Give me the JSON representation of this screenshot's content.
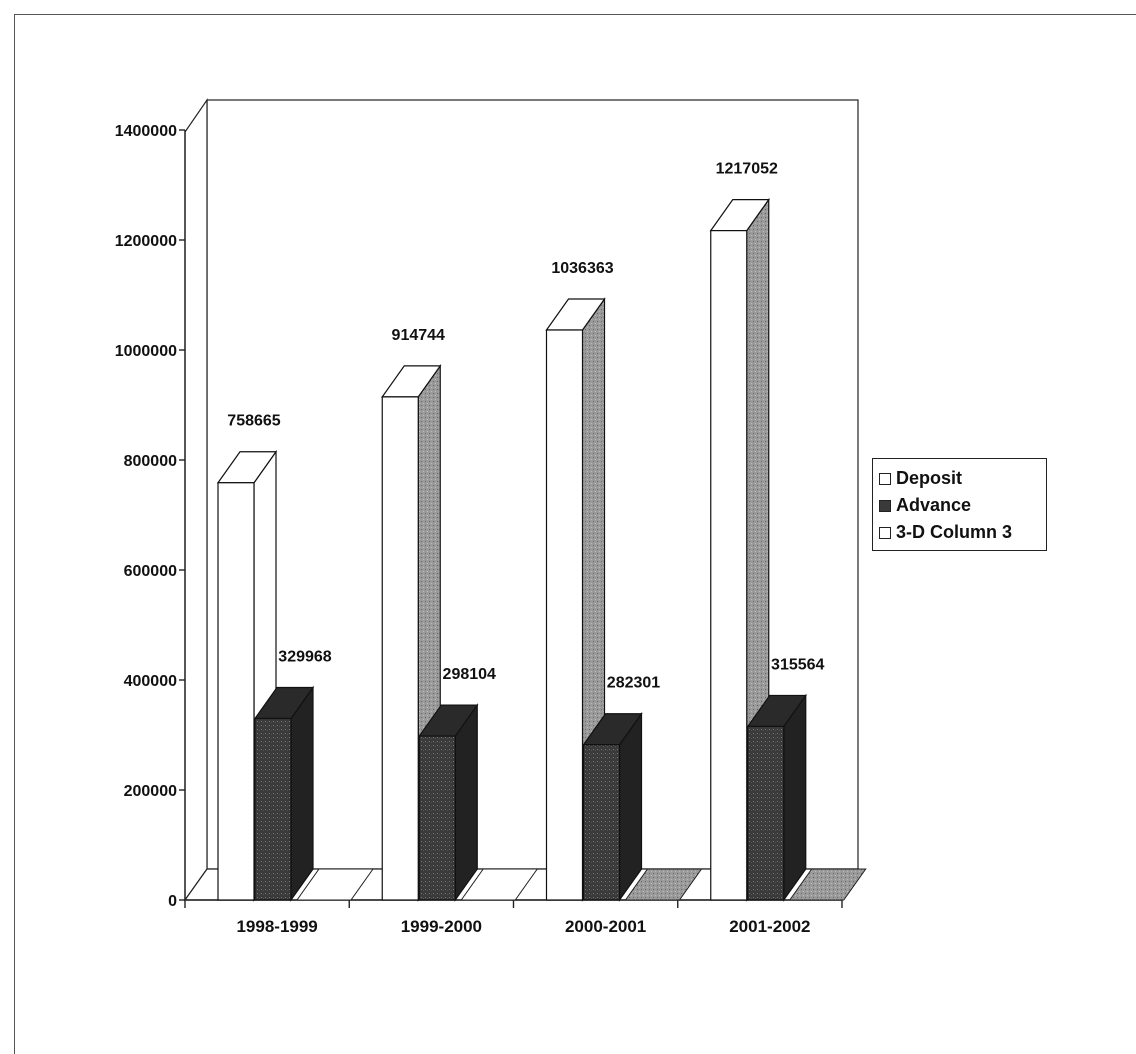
{
  "chart_data": {
    "type": "bar",
    "style": "3d-clustered-column",
    "categories": [
      "1998-1999",
      "1999-2000",
      "2000-2001",
      "2001-2002"
    ],
    "series": [
      {
        "name": "Deposit",
        "values": [
          758665,
          914744,
          1036363,
          1217052
        ],
        "color": "#ffffff"
      },
      {
        "name": "Advance",
        "values": [
          329968,
          298104,
          282301,
          315564
        ],
        "color": "#3a3a3a"
      },
      {
        "name": "3-D Column 3",
        "values": [
          0,
          0,
          0,
          0
        ],
        "color": "#ffffff"
      }
    ],
    "ylim": [
      0,
      1400000
    ],
    "yticks": [
      0,
      200000,
      400000,
      600000,
      800000,
      1000000,
      1200000,
      1400000
    ],
    "data_labels": true,
    "legend_position": "right",
    "grid": false,
    "title": "",
    "xlabel": "",
    "ylabel": ""
  },
  "legend": {
    "items": [
      {
        "label": "Deposit",
        "color": "#ffffff"
      },
      {
        "label": "Advance",
        "color": "#3a3a3a"
      },
      {
        "label": "3-D Column 3",
        "color": "#ffffff"
      }
    ]
  }
}
